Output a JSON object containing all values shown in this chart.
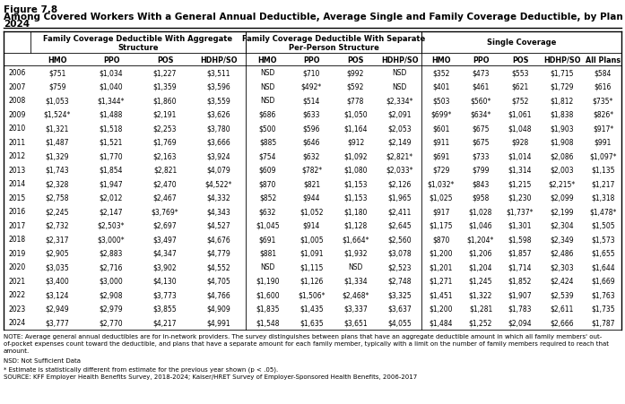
{
  "title_line1": "Figure 7.8",
  "title_line2": "Among Covered Workers With a General Annual Deductible, Average Single and Family Coverage Deductible, by Plan Type, 2006-\n2024",
  "years": [
    "2006",
    "2007",
    "2008",
    "2009",
    "2010",
    "2011",
    "2012",
    "2013",
    "2014",
    "2015",
    "2016",
    "2017",
    "2018",
    "2019",
    "2020",
    "2021",
    "2022",
    "2023",
    "2024"
  ],
  "rows": [
    [
      "$751",
      "$1,034",
      "$1,227",
      "$3,511",
      "NSD",
      "$710",
      "$992",
      "NSD",
      "$352",
      "$473",
      "$553",
      "$1,715",
      "$584"
    ],
    [
      "$759",
      "$1,040",
      "$1,359",
      "$3,596",
      "NSD",
      "$492*",
      "$592",
      "NSD",
      "$401",
      "$461",
      "$621",
      "$1,729",
      "$616"
    ],
    [
      "$1,053",
      "$1,344*",
      "$1,860",
      "$3,559",
      "NSD",
      "$514",
      "$778",
      "$2,334*",
      "$503",
      "$560*",
      "$752",
      "$1,812",
      "$735*"
    ],
    [
      "$1,524*",
      "$1,488",
      "$2,191",
      "$3,626",
      "$686",
      "$633",
      "$1,050",
      "$2,091",
      "$699*",
      "$634*",
      "$1,061",
      "$1,838",
      "$826*"
    ],
    [
      "$1,321",
      "$1,518",
      "$2,253",
      "$3,780",
      "$500",
      "$596",
      "$1,164",
      "$2,053",
      "$601",
      "$675",
      "$1,048",
      "$1,903",
      "$917*"
    ],
    [
      "$1,487",
      "$1,521",
      "$1,769",
      "$3,666",
      "$885",
      "$646",
      "$912",
      "$2,149",
      "$911",
      "$675",
      "$928",
      "$1,908",
      "$991"
    ],
    [
      "$1,329",
      "$1,770",
      "$2,163",
      "$3,924",
      "$754",
      "$632",
      "$1,092",
      "$2,821*",
      "$691",
      "$733",
      "$1,014",
      "$2,086",
      "$1,097*"
    ],
    [
      "$1,743",
      "$1,854",
      "$2,821",
      "$4,079",
      "$609",
      "$782*",
      "$1,080",
      "$2,033*",
      "$729",
      "$799",
      "$1,314",
      "$2,003",
      "$1,135"
    ],
    [
      "$2,328",
      "$1,947",
      "$2,470",
      "$4,522*",
      "$870",
      "$821",
      "$1,153",
      "$2,126",
      "$1,032*",
      "$843",
      "$1,215",
      "$2,215*",
      "$1,217"
    ],
    [
      "$2,758",
      "$2,012",
      "$2,467",
      "$4,332",
      "$852",
      "$944",
      "$1,153",
      "$1,965",
      "$1,025",
      "$958",
      "$1,230",
      "$2,099",
      "$1,318"
    ],
    [
      "$2,245",
      "$2,147",
      "$3,769*",
      "$4,343",
      "$632",
      "$1,052",
      "$1,180",
      "$2,411",
      "$917",
      "$1,028",
      "$1,737*",
      "$2,199",
      "$1,478*"
    ],
    [
      "$2,732",
      "$2,503*",
      "$2,697",
      "$4,527",
      "$1,045",
      "$914",
      "$1,128",
      "$2,645",
      "$1,175",
      "$1,046",
      "$1,301",
      "$2,304",
      "$1,505"
    ],
    [
      "$2,317",
      "$3,000*",
      "$3,497",
      "$4,676",
      "$691",
      "$1,005",
      "$1,664*",
      "$2,560",
      "$870",
      "$1,204*",
      "$1,598",
      "$2,349",
      "$1,573"
    ],
    [
      "$2,905",
      "$2,883",
      "$4,347",
      "$4,779",
      "$881",
      "$1,091",
      "$1,932",
      "$3,078",
      "$1,200",
      "$1,206",
      "$1,857",
      "$2,486",
      "$1,655"
    ],
    [
      "$3,035",
      "$2,716",
      "$3,902",
      "$4,552",
      "NSD",
      "$1,115",
      "NSD",
      "$2,523",
      "$1,201",
      "$1,204",
      "$1,714",
      "$2,303",
      "$1,644"
    ],
    [
      "$3,400",
      "$3,000",
      "$4,130",
      "$4,705",
      "$1,190",
      "$1,126",
      "$1,334",
      "$2,748",
      "$1,271",
      "$1,245",
      "$1,852",
      "$2,424",
      "$1,669"
    ],
    [
      "$3,124",
      "$2,908",
      "$3,773",
      "$4,766",
      "$1,600",
      "$1,506*",
      "$2,468*",
      "$3,325",
      "$1,451",
      "$1,322",
      "$1,907",
      "$2,539",
      "$1,763"
    ],
    [
      "$2,949",
      "$2,979",
      "$3,855",
      "$4,909",
      "$1,835",
      "$1,435",
      "$3,337",
      "$3,637",
      "$1,200",
      "$1,281",
      "$1,783",
      "$2,611",
      "$1,735"
    ],
    [
      "$3,777",
      "$2,770",
      "$4,217",
      "$4,991",
      "$1,548",
      "$1,635",
      "$3,651",
      "$4,055",
      "$1,484",
      "$1,252",
      "$2,094",
      "$2,666",
      "$1,787"
    ]
  ],
  "note1": "NOTE: Average general annual deductibles are for in-network providers. The survey distinguishes between plans that have an aggregate deductible amount in which all family members' out-",
  "note2": "of-pocket expenses count toward the deductible, and plans that have a separate amount for each family member, typically with a limit on the number of family members required to reach that",
  "note3": "amount.",
  "nsd_text": "NSD: Not Sufficient Data",
  "asterisk_text": "* Estimate is statistically different from estimate for the previous year shown (p < .05).",
  "source_text": "SOURCE: KFF Employer Health Benefits Survey, 2018-2024; Kaiser/HRET Survey of Employer-Sponsored Health Benefits, 2006-2017",
  "sec1_label1": "Family Coverage Deductible With Aggregate",
  "sec1_label2": "Structure",
  "sec2_label1": "Family Coverage Deductible With Separate",
  "sec2_label2": "Per-Person Structure",
  "sec3_label": "Single Coverage",
  "col_sub": [
    "HMO",
    "PPO",
    "POS",
    "HDHP/SO",
    "HMO",
    "PPO",
    "POS",
    "HDHP/SO",
    "HMO",
    "PPO",
    "POS",
    "HDHP/SO",
    "All Plans"
  ]
}
